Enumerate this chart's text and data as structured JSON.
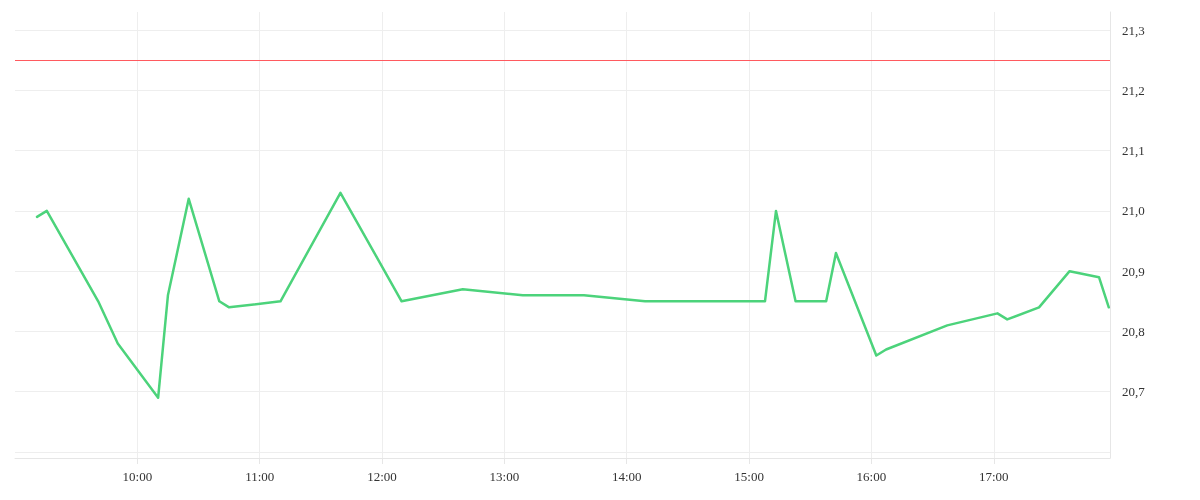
{
  "chart_data": {
    "type": "line",
    "x": [
      9.18,
      9.26,
      9.68,
      9.84,
      10.17,
      10.25,
      10.42,
      10.67,
      10.75,
      11.17,
      11.66,
      12.16,
      12.66,
      13.15,
      13.65,
      14.15,
      15.13,
      15.22,
      15.38,
      15.63,
      15.71,
      16.04,
      16.12,
      16.62,
      17.03,
      17.11,
      17.37,
      17.62,
      17.86,
      17.94
    ],
    "series": [
      {
        "color": "#4cd37b",
        "values": [
          20.99,
          21.0,
          20.85,
          20.78,
          20.69,
          20.86,
          21.02,
          20.85,
          20.84,
          20.85,
          21.03,
          20.85,
          20.87,
          20.86,
          20.86,
          20.85,
          20.85,
          21.0,
          20.85,
          20.85,
          20.93,
          20.76,
          20.77,
          20.81,
          20.83,
          20.82,
          20.84,
          20.9,
          20.89,
          20.84
        ]
      }
    ],
    "xlim": [
      9.0,
      17.95
    ],
    "xticks": [
      {
        "value": 10,
        "label": "10:00"
      },
      {
        "value": 11,
        "label": "11:00"
      },
      {
        "value": 12,
        "label": "12:00"
      },
      {
        "value": 13,
        "label": "13:00"
      },
      {
        "value": 14,
        "label": "14:00"
      },
      {
        "value": 15,
        "label": "15:00"
      },
      {
        "value": 16,
        "label": "16:00"
      },
      {
        "value": 17,
        "label": "17:00"
      }
    ],
    "ylim": [
      20.59,
      21.33
    ],
    "yticks": [
      {
        "value": 20.6,
        "label": null
      },
      {
        "value": 20.7,
        "label": "20,7"
      },
      {
        "value": 20.8,
        "label": "20,8"
      },
      {
        "value": 20.9,
        "label": "20,9"
      },
      {
        "value": 21.0,
        "label": "21,0"
      },
      {
        "value": 21.1,
        "label": "21,1"
      },
      {
        "value": 21.2,
        "label": "21,2"
      },
      {
        "value": 21.3,
        "label": "21,3"
      }
    ],
    "ref_lines": [
      {
        "axis": "y",
        "value": 21.25,
        "color": "#ff5a5f"
      }
    ],
    "grid": true,
    "marker": "none",
    "line_style": "solid"
  }
}
